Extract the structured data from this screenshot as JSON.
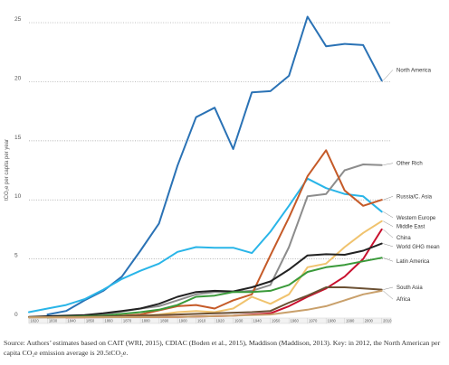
{
  "chart_data": {
    "type": "line",
    "ylabel": "tCO₂e per capita per year",
    "ylim": [
      0,
      26
    ],
    "yticks": [
      0,
      5,
      10,
      15,
      20,
      25
    ],
    "xlim": [
      1820,
      2015
    ],
    "x": [
      1820,
      1830,
      1840,
      1850,
      1860,
      1870,
      1880,
      1890,
      1900,
      1910,
      1920,
      1930,
      1940,
      1950,
      1960,
      1970,
      1980,
      1990,
      2000,
      2010
    ],
    "xtick_labels": [
      "1820",
      "1830",
      "1840",
      "1850",
      "1860",
      "1870",
      "1880",
      "1890",
      "1900",
      "1910",
      "1920",
      "1930",
      "1940",
      "1950",
      "1960",
      "1970",
      "1980",
      "1990",
      "2000",
      "2010"
    ],
    "grid": "horizontal dotted",
    "series": [
      {
        "name": "North America",
        "color": "#2a72b5",
        "points": [
          [
            1830,
            0.3
          ],
          [
            1840,
            0.6
          ],
          [
            1850,
            1.5
          ],
          [
            1860,
            2.3
          ],
          [
            1870,
            3.5
          ],
          [
            1880,
            5.7
          ],
          [
            1890,
            8.0
          ],
          [
            1900,
            12.9
          ],
          [
            1910,
            17.0
          ],
          [
            1920,
            17.8
          ],
          [
            1930,
            14.3
          ],
          [
            1940,
            19.1
          ],
          [
            1950,
            19.2
          ],
          [
            1960,
            20.5
          ],
          [
            1970,
            25.5
          ],
          [
            1980,
            23.0
          ],
          [
            1990,
            23.2
          ],
          [
            2000,
            23.1
          ],
          [
            2010,
            20.1
          ]
        ]
      },
      {
        "name": "Western Europe",
        "color": "#29b5e8",
        "points": [
          [
            1820,
            0.5
          ],
          [
            1830,
            0.8
          ],
          [
            1840,
            1.1
          ],
          [
            1850,
            1.6
          ],
          [
            1860,
            2.4
          ],
          [
            1870,
            3.3
          ],
          [
            1880,
            4.0
          ],
          [
            1890,
            4.6
          ],
          [
            1900,
            5.6
          ],
          [
            1910,
            6.0
          ],
          [
            1920,
            5.95
          ],
          [
            1930,
            5.95
          ],
          [
            1940,
            5.5
          ],
          [
            1950,
            7.3
          ],
          [
            1960,
            9.5
          ],
          [
            1970,
            11.8
          ],
          [
            1980,
            11.0
          ],
          [
            1990,
            10.5
          ],
          [
            2000,
            10.3
          ],
          [
            2010,
            9.0
          ]
        ]
      },
      {
        "name": "Other Rich",
        "color": "#8c8c8c",
        "points": [
          [
            1830,
            0.1
          ],
          [
            1860,
            0.3
          ],
          [
            1880,
            0.8
          ],
          [
            1890,
            1.0
          ],
          [
            1900,
            1.5
          ],
          [
            1910,
            2.0
          ],
          [
            1920,
            2.2
          ],
          [
            1930,
            2.2
          ],
          [
            1940,
            2.3
          ],
          [
            1950,
            2.8
          ],
          [
            1960,
            6.0
          ],
          [
            1970,
            10.3
          ],
          [
            1980,
            10.5
          ],
          [
            1990,
            12.5
          ],
          [
            2000,
            13.0
          ],
          [
            2010,
            12.95
          ]
        ]
      },
      {
        "name": "Russia/C. Asia",
        "color": "#c55a28",
        "points": [
          [
            1830,
            0.05
          ],
          [
            1860,
            0.1
          ],
          [
            1880,
            0.3
          ],
          [
            1900,
            1.0
          ],
          [
            1910,
            1.1
          ],
          [
            1920,
            0.8
          ],
          [
            1930,
            1.5
          ],
          [
            1940,
            2.0
          ],
          [
            1950,
            5.3
          ],
          [
            1960,
            8.5
          ],
          [
            1970,
            12.0
          ],
          [
            1980,
            14.2
          ],
          [
            1990,
            10.8
          ],
          [
            2000,
            9.5
          ],
          [
            2010,
            10.0
          ]
        ]
      },
      {
        "name": "Middle East",
        "color": "#f0c36e",
        "points": [
          [
            1840,
            0.05
          ],
          [
            1870,
            0.1
          ],
          [
            1890,
            0.3
          ],
          [
            1900,
            0.5
          ],
          [
            1910,
            0.6
          ],
          [
            1920,
            0.5
          ],
          [
            1930,
            0.8
          ],
          [
            1940,
            1.8
          ],
          [
            1950,
            1.2
          ],
          [
            1960,
            2.0
          ],
          [
            1970,
            4.3
          ],
          [
            1980,
            4.6
          ],
          [
            1990,
            6.0
          ],
          [
            2000,
            7.2
          ],
          [
            2010,
            8.2
          ]
        ]
      },
      {
        "name": "China",
        "color": "#c8102e",
        "points": [
          [
            1840,
            0.05
          ],
          [
            1900,
            0.1
          ],
          [
            1930,
            0.2
          ],
          [
            1940,
            0.3
          ],
          [
            1950,
            0.4
          ],
          [
            1960,
            1.0
          ],
          [
            1970,
            1.8
          ],
          [
            1980,
            2.5
          ],
          [
            1990,
            3.5
          ],
          [
            2000,
            5.0
          ],
          [
            2010,
            7.5
          ]
        ]
      },
      {
        "name": "World GHG mean",
        "color": "#222222",
        "points": [
          [
            1820,
            0.1
          ],
          [
            1830,
            0.15
          ],
          [
            1840,
            0.2
          ],
          [
            1850,
            0.25
          ],
          [
            1860,
            0.4
          ],
          [
            1870,
            0.6
          ],
          [
            1880,
            0.8
          ],
          [
            1890,
            1.2
          ],
          [
            1900,
            1.8
          ],
          [
            1910,
            2.2
          ],
          [
            1920,
            2.3
          ],
          [
            1930,
            2.25
          ],
          [
            1940,
            2.6
          ],
          [
            1950,
            3.1
          ],
          [
            1960,
            4.1
          ],
          [
            1970,
            5.3
          ],
          [
            1980,
            5.4
          ],
          [
            1990,
            5.35
          ],
          [
            2000,
            5.7
          ],
          [
            2010,
            6.3
          ]
        ]
      },
      {
        "name": "Latin America",
        "color": "#3a9a3a",
        "points": [
          [
            1830,
            0.05
          ],
          [
            1860,
            0.2
          ],
          [
            1880,
            0.5
          ],
          [
            1890,
            0.7
          ],
          [
            1900,
            1.1
          ],
          [
            1910,
            1.8
          ],
          [
            1920,
            1.9
          ],
          [
            1930,
            2.2
          ],
          [
            1940,
            2.2
          ],
          [
            1950,
            2.3
          ],
          [
            1960,
            2.8
          ],
          [
            1970,
            3.9
          ],
          [
            1980,
            4.3
          ],
          [
            1990,
            4.5
          ],
          [
            2000,
            4.8
          ],
          [
            2010,
            5.1
          ]
        ]
      },
      {
        "name": "South Asia",
        "color": "#6b5033",
        "points": [
          [
            1820,
            0.05
          ],
          [
            1850,
            0.1
          ],
          [
            1880,
            0.2
          ],
          [
            1900,
            0.3
          ],
          [
            1920,
            0.4
          ],
          [
            1940,
            0.5
          ],
          [
            1950,
            0.6
          ],
          [
            1960,
            1.3
          ],
          [
            1970,
            1.9
          ],
          [
            1980,
            2.6
          ],
          [
            1990,
            2.6
          ],
          [
            2000,
            2.5
          ],
          [
            2010,
            2.4
          ]
        ]
      },
      {
        "name": "Africa",
        "color": "#c9a06b",
        "points": [
          [
            1820,
            0.05
          ],
          [
            1900,
            0.1
          ],
          [
            1930,
            0.2
          ],
          [
            1950,
            0.3
          ],
          [
            1960,
            0.5
          ],
          [
            1970,
            0.7
          ],
          [
            1980,
            1.0
          ],
          [
            1990,
            1.5
          ],
          [
            2000,
            2.0
          ],
          [
            2010,
            2.3
          ]
        ]
      }
    ],
    "label_values": {
      "North America": 21.0,
      "Other Rich": 13.1,
      "Russia/C. Asia": 10.3,
      "Western Europe": 8.5,
      "Middle East": 7.75,
      "China": 6.8,
      "World GHG mean": 6.05,
      "Latin America": 4.8,
      "South Asia": 2.6,
      "Africa": 1.6
    }
  },
  "caption": "Source: Authors’ estimates based on CAIT (WRI, 2015), CDIAC (Boden et al., 2015), Maddison (Maddison, 2013). Key: in 2012, the North American per capita CO₂e emission average is 20.5tCO₂e."
}
